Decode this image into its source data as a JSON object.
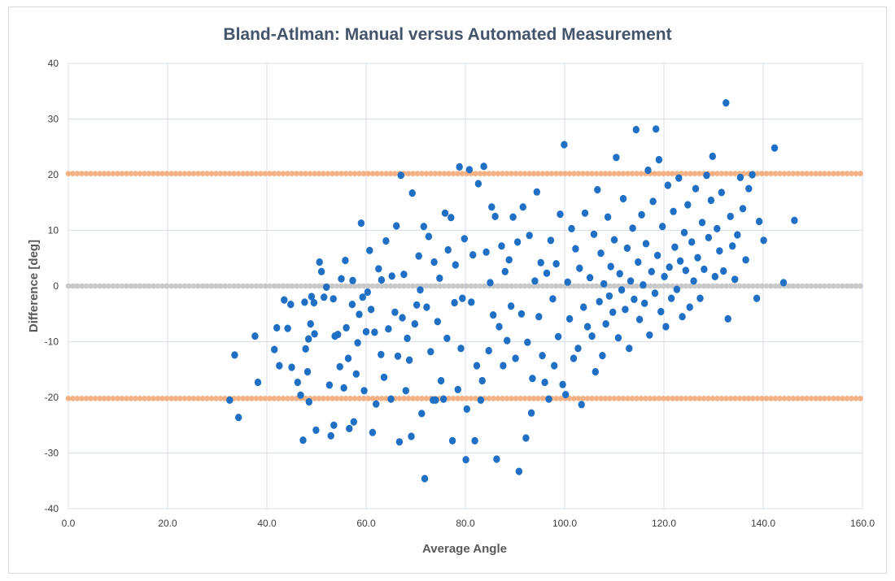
{
  "chart_data": {
    "type": "scatter",
    "title": "Bland-Atlman: Manual versus Automated Measurement",
    "xlabel": "Average Angle",
    "ylabel": "Difference [deg]",
    "xlim": [
      0,
      160
    ],
    "ylim": [
      -40,
      40
    ],
    "x_ticks": [
      "0.0",
      "20.0",
      "40.0",
      "60.0",
      "80.0",
      "100.0",
      "120.0",
      "140.0",
      "160.0"
    ],
    "y_ticks": [
      "40",
      "30",
      "20",
      "10",
      "0",
      "-10",
      "-20",
      "-30",
      "-40"
    ],
    "grid": true,
    "colors": {
      "points": "#1f6fc5",
      "limit_lines": "#f4b183",
      "mean_line": "#c9c9c9",
      "title": "#44546a"
    },
    "reference_lines": [
      {
        "role": "upper-limit",
        "y": 20.2,
        "color": "#f4b183"
      },
      {
        "role": "mean",
        "y": 0.0,
        "color": "#c9c9c9"
      },
      {
        "role": "lower-limit",
        "y": -20.2,
        "color": "#f4b183"
      }
    ],
    "series": [
      {
        "points": [
          [
            32.5,
            -20.5
          ],
          [
            33.5,
            -12.4
          ],
          [
            34.3,
            -23.6
          ],
          [
            37.6,
            -9.0
          ],
          [
            38.2,
            -17.3
          ],
          [
            41.5,
            -11.4
          ],
          [
            42.0,
            -7.5
          ],
          [
            42.5,
            -14.3
          ],
          [
            43.5,
            -2.5
          ],
          [
            44.2,
            -7.6
          ],
          [
            44.8,
            -3.3
          ],
          [
            45.0,
            -14.6
          ],
          [
            46.8,
            -19.6
          ],
          [
            46.2,
            -17.3
          ],
          [
            47.6,
            -2.9
          ],
          [
            47.3,
            -27.7
          ],
          [
            47.8,
            -11.3
          ],
          [
            48.2,
            -15.4
          ],
          [
            48.4,
            -9.5
          ],
          [
            48.8,
            -6.8
          ],
          [
            49.0,
            -1.9
          ],
          [
            49.5,
            -3.0
          ],
          [
            49.6,
            -8.6
          ],
          [
            48.5,
            -20.8
          ],
          [
            49.9,
            -25.9
          ],
          [
            50.6,
            4.3
          ],
          [
            51.0,
            2.6
          ],
          [
            51.5,
            -2.0
          ],
          [
            52.0,
            -0.2
          ],
          [
            52.6,
            -17.8
          ],
          [
            52.9,
            -26.9
          ],
          [
            53.4,
            -2.3
          ],
          [
            53.7,
            -9.0
          ],
          [
            53.5,
            -25.0
          ],
          [
            54.3,
            -8.7
          ],
          [
            54.7,
            -14.5
          ],
          [
            55.0,
            1.3
          ],
          [
            55.5,
            -18.3
          ],
          [
            56.0,
            -7.5
          ],
          [
            55.8,
            4.6
          ],
          [
            56.4,
            -13.0
          ],
          [
            56.6,
            -25.6
          ],
          [
            57.2,
            -3.3
          ],
          [
            57.3,
            1.0
          ],
          [
            57.5,
            -24.4
          ],
          [
            58.0,
            -15.8
          ],
          [
            58.3,
            -10.2
          ],
          [
            58.6,
            -5.1
          ],
          [
            59.0,
            11.3
          ],
          [
            59.3,
            -2.0
          ],
          [
            59.6,
            -18.8
          ],
          [
            60.0,
            -8.2
          ],
          [
            60.3,
            -1.1
          ],
          [
            60.7,
            6.4
          ],
          [
            61.0,
            -4.2
          ],
          [
            61.3,
            -26.3
          ],
          [
            61.7,
            -8.3
          ],
          [
            62.0,
            -21.2
          ],
          [
            62.5,
            3.1
          ],
          [
            63.0,
            -12.3
          ],
          [
            63.1,
            1.1
          ],
          [
            63.6,
            -16.4
          ],
          [
            64.0,
            8.1
          ],
          [
            64.5,
            -7.7
          ],
          [
            65.0,
            -20.3
          ],
          [
            65.2,
            1.8
          ],
          [
            65.8,
            -4.7
          ],
          [
            66.1,
            10.8
          ],
          [
            66.4,
            -12.6
          ],
          [
            66.7,
            -28.0
          ],
          [
            67.0,
            19.9
          ],
          [
            67.3,
            -5.7
          ],
          [
            67.6,
            2.1
          ],
          [
            68.0,
            -18.8
          ],
          [
            68.3,
            -9.4
          ],
          [
            68.7,
            -13.3
          ],
          [
            69.1,
            -27.0
          ],
          [
            69.3,
            16.7
          ],
          [
            69.8,
            -6.8
          ],
          [
            70.2,
            -3.4
          ],
          [
            70.6,
            5.4
          ],
          [
            70.9,
            -0.7
          ],
          [
            71.2,
            -22.9
          ],
          [
            71.6,
            10.7
          ],
          [
            71.8,
            -34.6
          ],
          [
            72.2,
            -3.8
          ],
          [
            72.6,
            8.9
          ],
          [
            73.0,
            -11.8
          ],
          [
            73.5,
            -20.5
          ],
          [
            73.7,
            4.3
          ],
          [
            74.0,
            -20.5
          ],
          [
            74.4,
            -6.4
          ],
          [
            74.8,
            1.4
          ],
          [
            75.1,
            -17.0
          ],
          [
            75.6,
            -20.3
          ],
          [
            75.9,
            13.1
          ],
          [
            76.3,
            -9.4
          ],
          [
            76.5,
            6.5
          ],
          [
            77.1,
            12.3
          ],
          [
            77.4,
            -27.8
          ],
          [
            77.8,
            -3.0
          ],
          [
            78.0,
            3.8
          ],
          [
            78.5,
            -18.6
          ],
          [
            78.8,
            21.4
          ],
          [
            79.1,
            -11.2
          ],
          [
            79.4,
            -2.2
          ],
          [
            79.8,
            8.5
          ],
          [
            80.1,
            -31.2
          ],
          [
            80.3,
            -22.1
          ],
          [
            80.8,
            20.9
          ],
          [
            81.2,
            -2.9
          ],
          [
            81.5,
            5.6
          ],
          [
            81.9,
            -27.8
          ],
          [
            82.3,
            -14.3
          ],
          [
            82.6,
            18.4
          ],
          [
            83.1,
            -20.5
          ],
          [
            83.4,
            -17.0
          ],
          [
            83.7,
            21.5
          ],
          [
            84.2,
            6.1
          ],
          [
            84.7,
            -11.6
          ],
          [
            85.0,
            0.6
          ],
          [
            85.3,
            14.2
          ],
          [
            85.6,
            -5.2
          ],
          [
            86.0,
            12.5
          ],
          [
            86.3,
            -31.1
          ],
          [
            86.8,
            -7.3
          ],
          [
            87.3,
            7.2
          ],
          [
            87.6,
            -14.3
          ],
          [
            88.0,
            2.6
          ],
          [
            88.4,
            -9.8
          ],
          [
            88.8,
            4.7
          ],
          [
            89.2,
            -3.6
          ],
          [
            89.6,
            12.4
          ],
          [
            90.1,
            -13.0
          ],
          [
            90.5,
            7.9
          ],
          [
            90.8,
            -33.3
          ],
          [
            91.3,
            -5.0
          ],
          [
            91.6,
            14.2
          ],
          [
            92.2,
            -27.3
          ],
          [
            92.5,
            -10.1
          ],
          [
            92.9,
            9.1
          ],
          [
            93.3,
            -22.8
          ],
          [
            93.5,
            -16.6
          ],
          [
            94.0,
            0.9
          ],
          [
            94.4,
            16.9
          ],
          [
            94.8,
            -5.5
          ],
          [
            95.2,
            4.2
          ],
          [
            95.5,
            -12.5
          ],
          [
            96.0,
            -17.3
          ],
          [
            96.4,
            2.3
          ],
          [
            96.8,
            -20.3
          ],
          [
            97.2,
            8.2
          ],
          [
            97.6,
            -2.3
          ],
          [
            97.9,
            -14.3
          ],
          [
            98.3,
            4.0
          ],
          [
            98.7,
            -9.1
          ],
          [
            99.1,
            12.9
          ],
          [
            99.6,
            -17.7
          ],
          [
            99.9,
            25.4
          ],
          [
            100.2,
            -19.5
          ],
          [
            100.6,
            0.7
          ],
          [
            101.0,
            -5.9
          ],
          [
            101.4,
            10.3
          ],
          [
            101.8,
            -13.0
          ],
          [
            102.2,
            6.7
          ],
          [
            102.7,
            -11.2
          ],
          [
            103.0,
            3.2
          ],
          [
            103.4,
            -21.3
          ],
          [
            103.8,
            -3.8
          ],
          [
            104.1,
            13.1
          ],
          [
            104.6,
            -7.3
          ],
          [
            105.1,
            1.5
          ],
          [
            105.5,
            -9.0
          ],
          [
            105.9,
            9.3
          ],
          [
            106.2,
            -15.4
          ],
          [
            106.6,
            17.3
          ],
          [
            107.0,
            -2.8
          ],
          [
            107.3,
            5.9
          ],
          [
            107.6,
            -12.5
          ],
          [
            107.9,
            0.4
          ],
          [
            108.3,
            -6.8
          ],
          [
            108.7,
            12.4
          ],
          [
            109.0,
            -1.8
          ],
          [
            109.3,
            3.5
          ],
          [
            109.7,
            -4.7
          ],
          [
            110.0,
            8.3
          ],
          [
            110.4,
            23.1
          ],
          [
            110.8,
            -9.3
          ],
          [
            111.1,
            2.2
          ],
          [
            111.5,
            -0.7
          ],
          [
            111.8,
            15.7
          ],
          [
            112.2,
            -4.2
          ],
          [
            112.6,
            6.8
          ],
          [
            113.0,
            -11.2
          ],
          [
            113.3,
            0.9
          ],
          [
            113.7,
            10.4
          ],
          [
            114.0,
            -2.4
          ],
          [
            114.4,
            28.1
          ],
          [
            114.8,
            4.3
          ],
          [
            115.1,
            -6.0
          ],
          [
            115.5,
            12.8
          ],
          [
            115.8,
            0.2
          ],
          [
            116.1,
            -3.1
          ],
          [
            116.4,
            7.6
          ],
          [
            116.8,
            20.8
          ],
          [
            117.1,
            -8.8
          ],
          [
            117.5,
            2.6
          ],
          [
            117.8,
            15.2
          ],
          [
            118.2,
            -1.3
          ],
          [
            118.4,
            28.2
          ],
          [
            118.7,
            5.5
          ],
          [
            119.0,
            22.7
          ],
          [
            119.4,
            -4.6
          ],
          [
            119.7,
            10.7
          ],
          [
            120.1,
            1.7
          ],
          [
            120.4,
            -7.3
          ],
          [
            120.8,
            18.1
          ],
          [
            121.1,
            3.4
          ],
          [
            121.5,
            -2.2
          ],
          [
            121.9,
            13.4
          ],
          [
            122.2,
            7.0
          ],
          [
            122.6,
            -0.6
          ],
          [
            123.0,
            19.4
          ],
          [
            123.3,
            4.5
          ],
          [
            123.7,
            -5.5
          ],
          [
            124.1,
            9.6
          ],
          [
            124.4,
            2.8
          ],
          [
            124.8,
            14.6
          ],
          [
            125.2,
            -3.8
          ],
          [
            125.6,
            7.9
          ],
          [
            126.0,
            0.9
          ],
          [
            126.4,
            17.5
          ],
          [
            126.8,
            5.1
          ],
          [
            127.3,
            -2.2
          ],
          [
            127.7,
            11.4
          ],
          [
            128.1,
            3.0
          ],
          [
            128.6,
            19.9
          ],
          [
            129.0,
            8.7
          ],
          [
            129.5,
            15.4
          ],
          [
            129.8,
            23.3
          ],
          [
            130.3,
            1.7
          ],
          [
            130.7,
            10.3
          ],
          [
            131.2,
            6.3
          ],
          [
            131.6,
            16.8
          ],
          [
            132.0,
            2.7
          ],
          [
            132.5,
            32.9
          ],
          [
            132.9,
            -5.9
          ],
          [
            133.4,
            12.5
          ],
          [
            133.8,
            7.2
          ],
          [
            134.3,
            1.2
          ],
          [
            134.8,
            9.2
          ],
          [
            135.4,
            19.5
          ],
          [
            135.9,
            13.9
          ],
          [
            136.5,
            4.7
          ],
          [
            137.1,
            17.5
          ],
          [
            137.8,
            20.0
          ],
          [
            138.7,
            -2.2
          ],
          [
            139.2,
            11.6
          ],
          [
            140.1,
            8.2
          ],
          [
            142.3,
            24.8
          ],
          [
            144.1,
            0.6
          ],
          [
            146.3,
            11.8
          ]
        ]
      }
    ]
  }
}
